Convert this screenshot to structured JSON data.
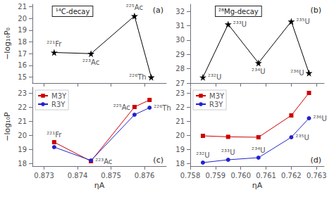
{
  "chart_data": [
    {
      "type": "line",
      "title": "¹⁴C-decay",
      "subtitle": "(a)",
      "x": [
        0.8733,
        0.8744,
        0.8757,
        0.8762
      ],
      "values": [
        17.1,
        17.0,
        20.2,
        15.0
      ],
      "color": "black",
      "marker": "star",
      "annotations": [
        {
          "text": "²²¹Fr",
          "x": 0.8733,
          "y": 17.1
        },
        {
          "text": "²²³Ac",
          "x": 0.8744,
          "y": 17.0
        },
        {
          "text": "²²⁵Ac",
          "x": 0.8757,
          "y": 20.2
        },
        {
          "text": "²²⁶Th",
          "x": 0.8762,
          "y": 15.0
        }
      ],
      "xlim": [
        0.87265,
        0.87665
      ],
      "xticks": [
        0.873,
        0.874,
        0.875,
        0.876
      ],
      "ylim": [
        14.5,
        21.2
      ],
      "yticks": [
        15,
        16,
        17,
        18,
        19,
        20,
        21
      ],
      "ylabel": "−log₁₀P₀",
      "grid": false,
      "tick_labels": "y"
    },
    {
      "type": "line",
      "title": "²⁸Mg-decay",
      "subtitle": "(b)",
      "x": [
        0.7585,
        0.7595,
        0.7607,
        0.762,
        0.7627
      ],
      "values": [
        27.4,
        31.1,
        28.4,
        31.3,
        27.7
      ],
      "color": "black",
      "marker": "star",
      "annotations": [
        {
          "text": "²³²U",
          "x": 0.7585,
          "y": 27.4
        },
        {
          "text": "²³³U",
          "x": 0.7595,
          "y": 31.1
        },
        {
          "text": "²³⁴U",
          "x": 0.7607,
          "y": 28.4
        },
        {
          "text": "²³⁵U",
          "x": 0.762,
          "y": 31.3
        },
        {
          "text": "²³⁶U",
          "x": 0.7627,
          "y": 27.7
        }
      ],
      "xlim": [
        0.758,
        0.7633
      ],
      "xticks": [
        0.758,
        0.759,
        0.76,
        0.761,
        0.762,
        0.763
      ],
      "ylim": [
        27.0,
        32.5
      ],
      "yticks": [
        27,
        28,
        29,
        30,
        31,
        32
      ],
      "grid": false,
      "tick_labels": "y"
    },
    {
      "type": "line",
      "subtitle": "(c)",
      "x": [
        0.8733,
        0.8744,
        0.8757,
        0.87615
      ],
      "series": [
        {
          "name": "M3Y",
          "color": "#cc0000",
          "marker": "square",
          "values": [
            19.5,
            18.15,
            22.0,
            22.5
          ]
        },
        {
          "name": "R3Y",
          "color": "#2222cc",
          "marker": "circle",
          "values": [
            19.15,
            18.2,
            21.45,
            21.95
          ]
        }
      ],
      "annotations": [
        {
          "text": "²²¹Fr",
          "x": 0.8733,
          "y": 19.5
        },
        {
          "text": "²²³Ac",
          "x": 0.8744,
          "y": 18.15
        },
        {
          "text": "²²⁵Ac",
          "x": 0.8757,
          "y": 22.0
        },
        {
          "text": "²²⁶Th",
          "x": 0.87615,
          "y": 21.95
        }
      ],
      "xlim": [
        0.87265,
        0.87665
      ],
      "xticks": [
        0.873,
        0.874,
        0.875,
        0.876
      ],
      "ylim": [
        17.8,
        23.4
      ],
      "yticks": [
        18,
        19,
        20,
        21,
        22,
        23
      ],
      "xlabel": "ηA",
      "ylabel": "−log₁₀P",
      "legend": "upper left",
      "grid": false
    },
    {
      "type": "line",
      "subtitle": "(d)",
      "x": [
        0.7585,
        0.7595,
        0.7607,
        0.762,
        0.7627
      ],
      "series": [
        {
          "name": "M3Y",
          "color": "#cc0000",
          "marker": "square",
          "values": [
            19.95,
            19.88,
            19.85,
            21.4,
            23.0
          ]
        },
        {
          "name": "R3Y",
          "color": "#2222cc",
          "marker": "circle",
          "values": [
            18.05,
            18.25,
            18.4,
            19.85,
            21.2
          ]
        }
      ],
      "annotations": [
        {
          "text": "²³²U",
          "x": 0.7585,
          "y": 18.05
        },
        {
          "text": "²³³U",
          "x": 0.7595,
          "y": 18.25
        },
        {
          "text": "²³⁴U",
          "x": 0.7607,
          "y": 18.4
        },
        {
          "text": "²³⁵U",
          "x": 0.762,
          "y": 19.85
        },
        {
          "text": "²³⁶U",
          "x": 0.7627,
          "y": 21.2
        }
      ],
      "xlim": [
        0.758,
        0.7633
      ],
      "xticks": [
        0.758,
        0.759,
        {
          "value": 0.76,
          "label": "0.760"
        },
        0.761,
        0.762,
        0.763
      ],
      "ylim": [
        17.8,
        23.4
      ],
      "yticks": [
        18,
        19,
        20,
        21,
        22,
        23
      ],
      "xlabel": "ηA",
      "legend": "upper left",
      "grid": false
    }
  ]
}
